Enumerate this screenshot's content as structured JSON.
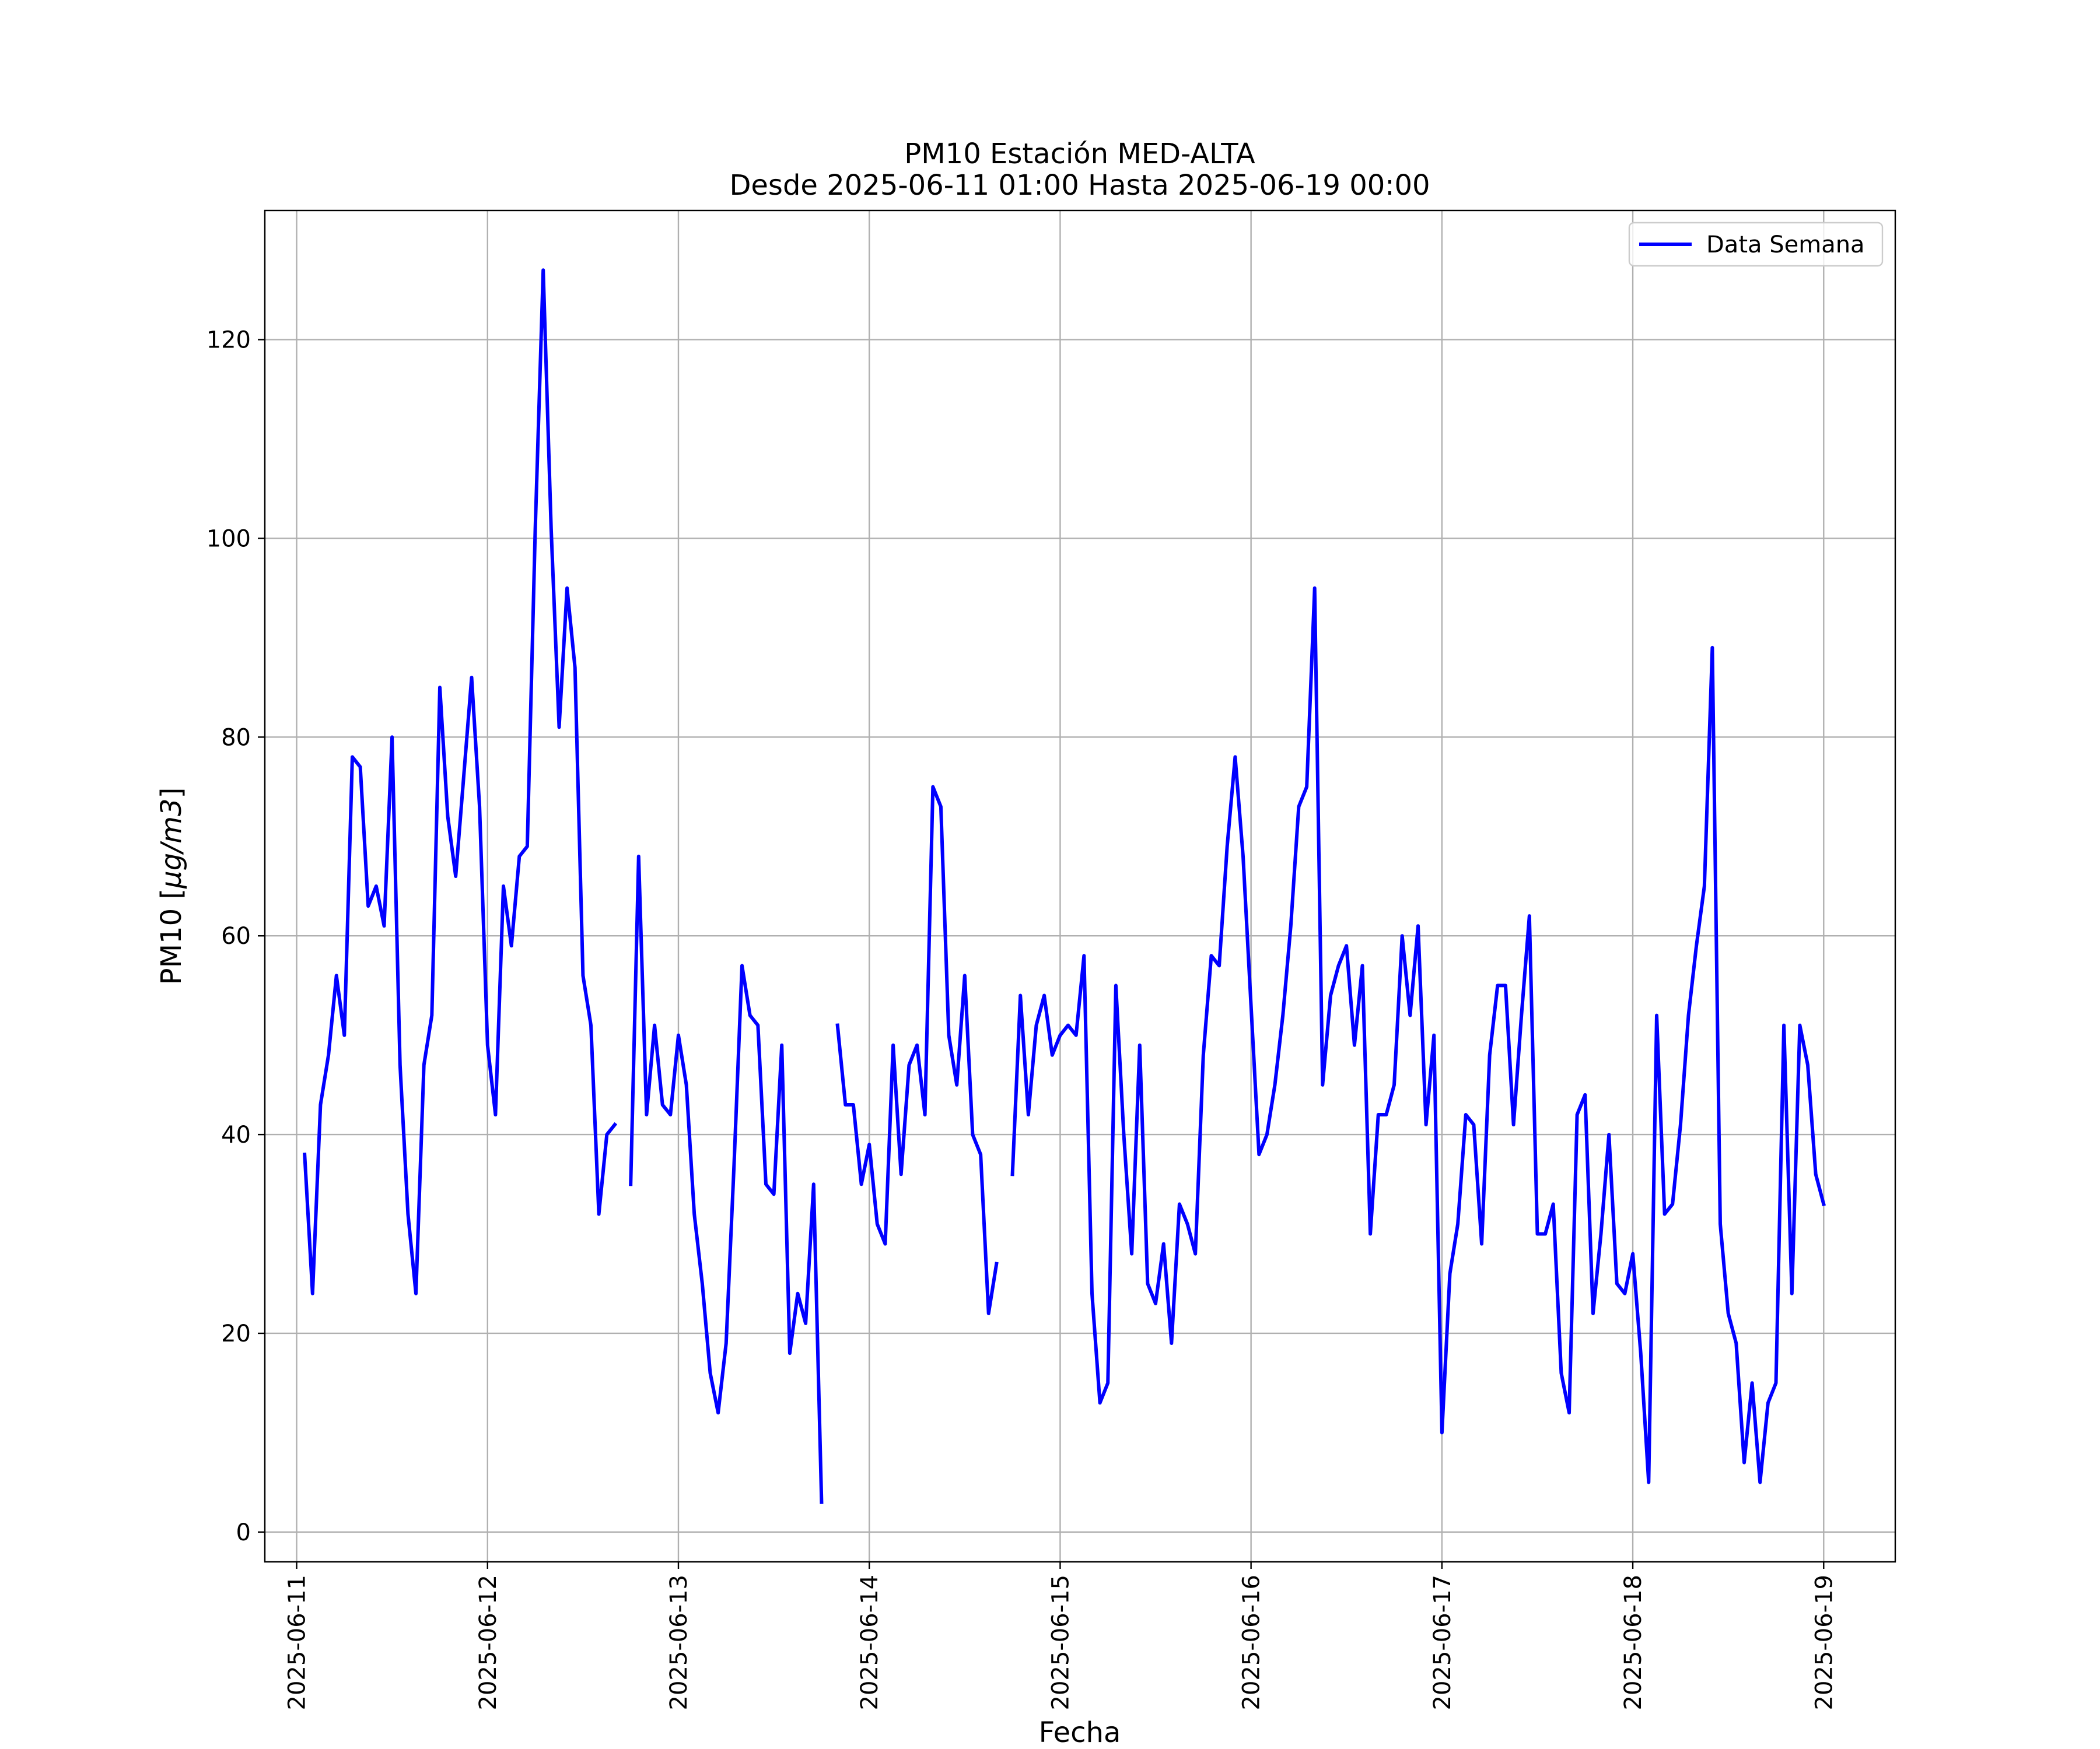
{
  "chart_data": {
    "type": "line",
    "title": "PM10 Estación MED-ALTA",
    "subtitle": "Desde 2025-06-11 01:00 Hasta 2025-06-19 00:00",
    "xlabel": "Fecha",
    "ylabel": "PM10 [μg/m3]",
    "ylabel_unit": "μg/m3",
    "ylabel_prefix": "PM10",
    "xlim": [
      "2025-06-10 20:00",
      "2025-06-19 09:00"
    ],
    "ylim": [
      -3,
      133
    ],
    "x_ticks": [
      "2025-06-11",
      "2025-06-12",
      "2025-06-13",
      "2025-06-14",
      "2025-06-15",
      "2025-06-16",
      "2025-06-17",
      "2025-06-18",
      "2025-06-19"
    ],
    "y_ticks": [
      "0",
      "20",
      "40",
      "60",
      "80",
      "100",
      "120"
    ],
    "grid": true,
    "legend_position": "top-right",
    "color": "#0000ff",
    "start": "2025-06-11 01:00",
    "series": [
      {
        "name": "Data Semana",
        "values": [
          38,
          24,
          43,
          48,
          56,
          50,
          78,
          77,
          63,
          65,
          61,
          80,
          47,
          32,
          24,
          47,
          52,
          85,
          72,
          66,
          76,
          86,
          73,
          49,
          42,
          65,
          59,
          68,
          69,
          101,
          127,
          101,
          81,
          95,
          87,
          56,
          51,
          32,
          40,
          41,
          null,
          35,
          68,
          42,
          51,
          43,
          42,
          50,
          45,
          32,
          25,
          16,
          12,
          19,
          37,
          57,
          52,
          51,
          35,
          34,
          49,
          18,
          24,
          21,
          35,
          3,
          null,
          51,
          43,
          43,
          35,
          39,
          31,
          29,
          49,
          36,
          47,
          49,
          42,
          75,
          73,
          50,
          45,
          56,
          40,
          38,
          22,
          27,
          null,
          36,
          54,
          42,
          51,
          54,
          48,
          50,
          51,
          50,
          58,
          24,
          13,
          15,
          55,
          40,
          28,
          49,
          25,
          23,
          29,
          19,
          33,
          31,
          28,
          48,
          58,
          57,
          69,
          78,
          68,
          53,
          38,
          40,
          45,
          52,
          61,
          73,
          75,
          95,
          45,
          54,
          57,
          59,
          49,
          57,
          30,
          42,
          42,
          45,
          60,
          52,
          61,
          41,
          50,
          10,
          26,
          31,
          42,
          41,
          29,
          48,
          55,
          55,
          41,
          52,
          62,
          30,
          30,
          33,
          16,
          12,
          42,
          44,
          22,
          30,
          40,
          25,
          24,
          28,
          18,
          5,
          52,
          32,
          33,
          41,
          52,
          59,
          65,
          89,
          31,
          22,
          19,
          7,
          15,
          5,
          13,
          15,
          51,
          24,
          51,
          47,
          36,
          33
        ]
      }
    ]
  }
}
